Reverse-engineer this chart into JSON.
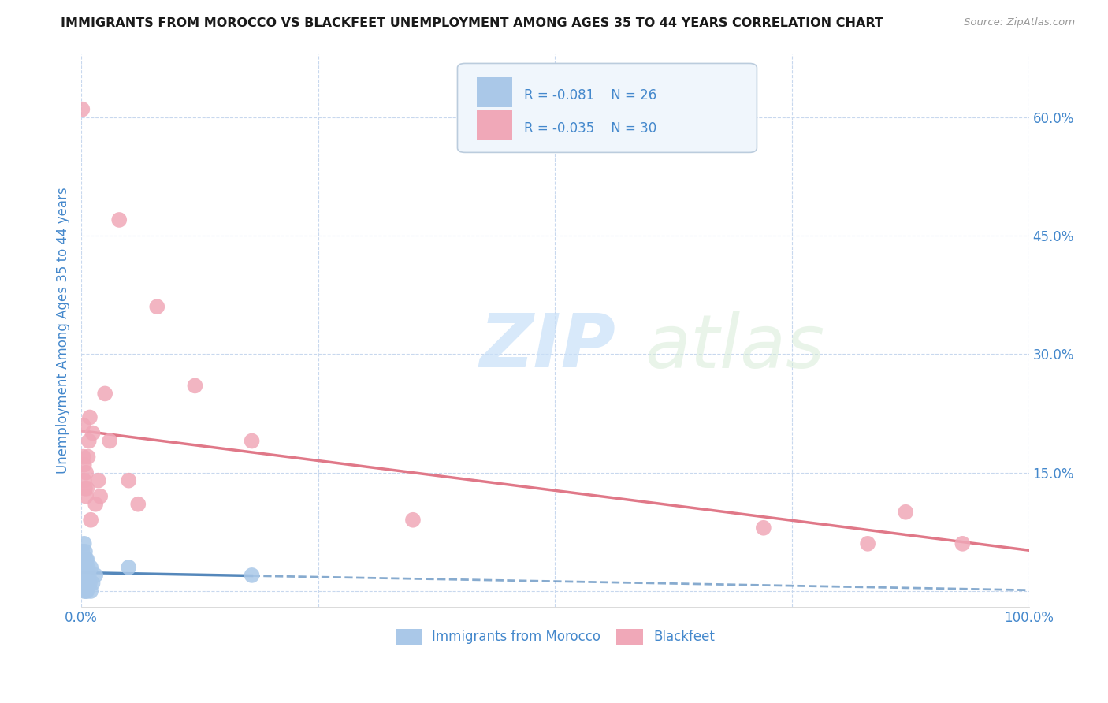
{
  "title": "IMMIGRANTS FROM MOROCCO VS BLACKFEET UNEMPLOYMENT AMONG AGES 35 TO 44 YEARS CORRELATION CHART",
  "source": "Source: ZipAtlas.com",
  "ylabel": "Unemployment Among Ages 35 to 44 years",
  "xlim": [
    0.0,
    1.0
  ],
  "ylim": [
    -0.02,
    0.68
  ],
  "legend_r_blue": "-0.081",
  "legend_n_blue": "26",
  "legend_r_pink": "-0.035",
  "legend_n_pink": "30",
  "legend_label_blue": "Immigrants from Morocco",
  "legend_label_pink": "Blackfeet",
  "blue_color": "#aac8e8",
  "pink_color": "#f0a8b8",
  "blue_line_color": "#5588bb",
  "pink_line_color": "#e07888",
  "background_color": "#ffffff",
  "grid_color": "#c8d8ee",
  "watermark_color": "#ddeeff",
  "title_color": "#1a1a1a",
  "axis_label_color": "#4488cc",
  "tick_label_color": "#4488cc",
  "y_tick_positions": [
    0.0,
    0.15,
    0.3,
    0.45,
    0.6
  ],
  "x_tick_positions": [
    0.0,
    0.25,
    0.5,
    0.75,
    1.0
  ],
  "blue_points_x": [
    0.001,
    0.001,
    0.002,
    0.002,
    0.003,
    0.003,
    0.003,
    0.004,
    0.004,
    0.004,
    0.005,
    0.005,
    0.005,
    0.006,
    0.006,
    0.006,
    0.007,
    0.007,
    0.008,
    0.009,
    0.01,
    0.01,
    0.012,
    0.015,
    0.05,
    0.18
  ],
  "blue_points_y": [
    0.02,
    0.05,
    0.01,
    0.04,
    0.0,
    0.03,
    0.06,
    0.01,
    0.03,
    0.05,
    0.0,
    0.02,
    0.04,
    0.0,
    0.02,
    0.04,
    0.01,
    0.03,
    0.02,
    0.01,
    0.0,
    0.03,
    0.01,
    0.02,
    0.03,
    0.02
  ],
  "pink_points_x": [
    0.001,
    0.002,
    0.002,
    0.003,
    0.003,
    0.004,
    0.005,
    0.005,
    0.006,
    0.007,
    0.008,
    0.009,
    0.01,
    0.012,
    0.015,
    0.018,
    0.02,
    0.025,
    0.03,
    0.04,
    0.05,
    0.06,
    0.08,
    0.12,
    0.18,
    0.35,
    0.72,
    0.83,
    0.87,
    0.93
  ],
  "pink_points_y": [
    0.61,
    0.17,
    0.21,
    0.14,
    0.16,
    0.13,
    0.12,
    0.15,
    0.13,
    0.17,
    0.19,
    0.22,
    0.09,
    0.2,
    0.11,
    0.14,
    0.12,
    0.25,
    0.19,
    0.47,
    0.14,
    0.11,
    0.36,
    0.26,
    0.19,
    0.09,
    0.08,
    0.06,
    0.1,
    0.06
  ]
}
